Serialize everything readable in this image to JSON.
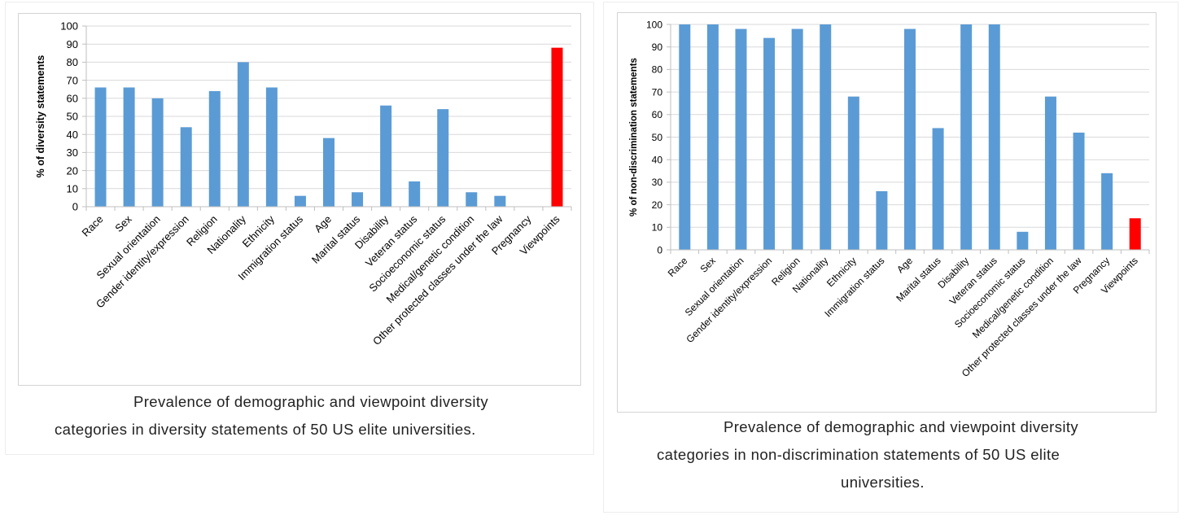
{
  "chart_data": [
    {
      "type": "bar",
      "title": "",
      "xlabel": "",
      "ylabel": "% of diversity statements",
      "ylim": [
        0,
        100
      ],
      "yticks": [
        0,
        10,
        20,
        30,
        40,
        50,
        60,
        70,
        80,
        90,
        100
      ],
      "grid": true,
      "categories": [
        "Race",
        "Sex",
        "Sexual orientation",
        "Gender identity/expression",
        "Religion",
        "Nationality",
        "Ethnicity",
        "Immigration status",
        "Age",
        "Marital status",
        "Disability",
        "Veteran status",
        "Socioeconomic status",
        "Medical/genetic condition",
        "Other protected classes under the law",
        "Pregnancy",
        "Viewpoints"
      ],
      "values": [
        66,
        66,
        60,
        44,
        64,
        80,
        66,
        6,
        38,
        8,
        56,
        14,
        54,
        8,
        6,
        0,
        88
      ],
      "colors": {
        "default": "#5b9bd5",
        "highlight": "#ff0000"
      },
      "highlight_category": "Viewpoints",
      "caption": [
        "Prevalence of demographic and viewpoint diversity",
        "categories in diversity statements of 50 US elite universities."
      ]
    },
    {
      "type": "bar",
      "title": "",
      "xlabel": "",
      "ylabel": "% of non-discrimination statements",
      "ylim": [
        0,
        100
      ],
      "yticks": [
        0,
        10,
        20,
        30,
        40,
        50,
        60,
        70,
        80,
        90,
        100
      ],
      "grid": true,
      "categories": [
        "Race",
        "Sex",
        "Sexual orientation",
        "Gender identity/expression",
        "Religion",
        "Nationality",
        "Ethnicity",
        "Immigration status",
        "Age",
        "Marital status",
        "Disability",
        "Veteran status",
        "Socioeconomic status",
        "Medical/genetic condition",
        "Other protected classes under the law",
        "Pregnancy",
        "Viewpoints"
      ],
      "values": [
        100,
        100,
        98,
        94,
        98,
        100,
        68,
        26,
        98,
        54,
        100,
        100,
        8,
        68,
        52,
        34,
        14
      ],
      "colors": {
        "default": "#5b9bd5",
        "highlight": "#ff0000"
      },
      "highlight_category": "Viewpoints",
      "caption": [
        "Prevalence of demographic and viewpoint diversity",
        "categories in non-discrimination statements of 50 US elite",
        "universities."
      ]
    }
  ]
}
